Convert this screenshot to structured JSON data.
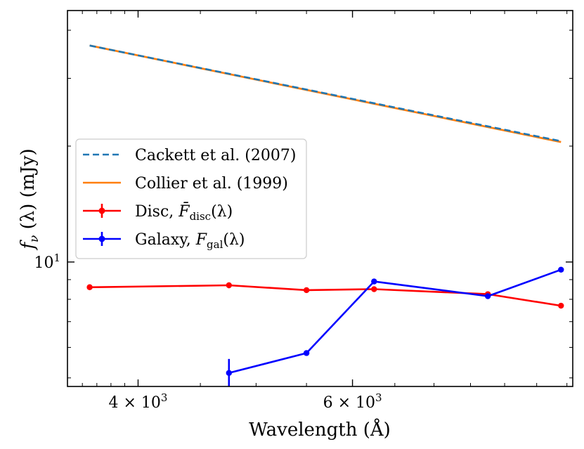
{
  "chart_data": {
    "type": "line",
    "title": "",
    "xlabel": "Wavelength (Å)",
    "ylabel_main": "f",
    "ylabel_sub": "ν",
    "ylabel_rest": " (λ) (mJy)",
    "xscale": "log",
    "yscale": "log",
    "xlim": [
      3500,
      9100
    ],
    "ylim": [
      4.75,
      45
    ],
    "x_ticks": [
      {
        "value": 4000,
        "base": "4 × 10",
        "exp": "3"
      },
      {
        "value": 6000,
        "base": "6 × 10",
        "exp": "3"
      }
    ],
    "y_ticks": [
      {
        "value": 10,
        "base": "10",
        "exp": "1"
      }
    ],
    "series": [
      {
        "name": "Cackett et al. (2007)",
        "color": "#1f77b4",
        "style": "dashed",
        "x": [
          3650,
          8900
        ],
        "y": [
          36.5,
          20.6
        ]
      },
      {
        "name": "Collier et al. (1999)",
        "color": "#ff7f0e",
        "style": "solid",
        "x": [
          3650,
          8900
        ],
        "y": [
          36.5,
          20.5
        ]
      },
      {
        "name": "Disc",
        "legend_math": "F̄",
        "legend_sub": "disc",
        "legend_tail": "(λ)",
        "color": "#ff0000",
        "style": "solid-markers",
        "x": [
          3650,
          4750,
          5500,
          6250,
          7750,
          8900
        ],
        "y": [
          8.6,
          8.7,
          8.45,
          8.5,
          8.25,
          7.7
        ],
        "yerr": [
          0.05,
          0.15,
          0.05,
          0.05,
          0.1,
          0.05
        ]
      },
      {
        "name": "Galaxy",
        "legend_math": "F",
        "legend_sub": "gal",
        "legend_tail": "(λ)",
        "color": "#0000ff",
        "style": "solid-markers",
        "x": [
          4750,
          5500,
          6250,
          7750,
          8900
        ],
        "y": [
          5.15,
          5.8,
          8.9,
          8.15,
          9.55
        ],
        "yerr": [
          0.45,
          0.05,
          0.05,
          0.1,
          0.05
        ]
      }
    ],
    "legend_position": "center-left",
    "grid": false
  }
}
